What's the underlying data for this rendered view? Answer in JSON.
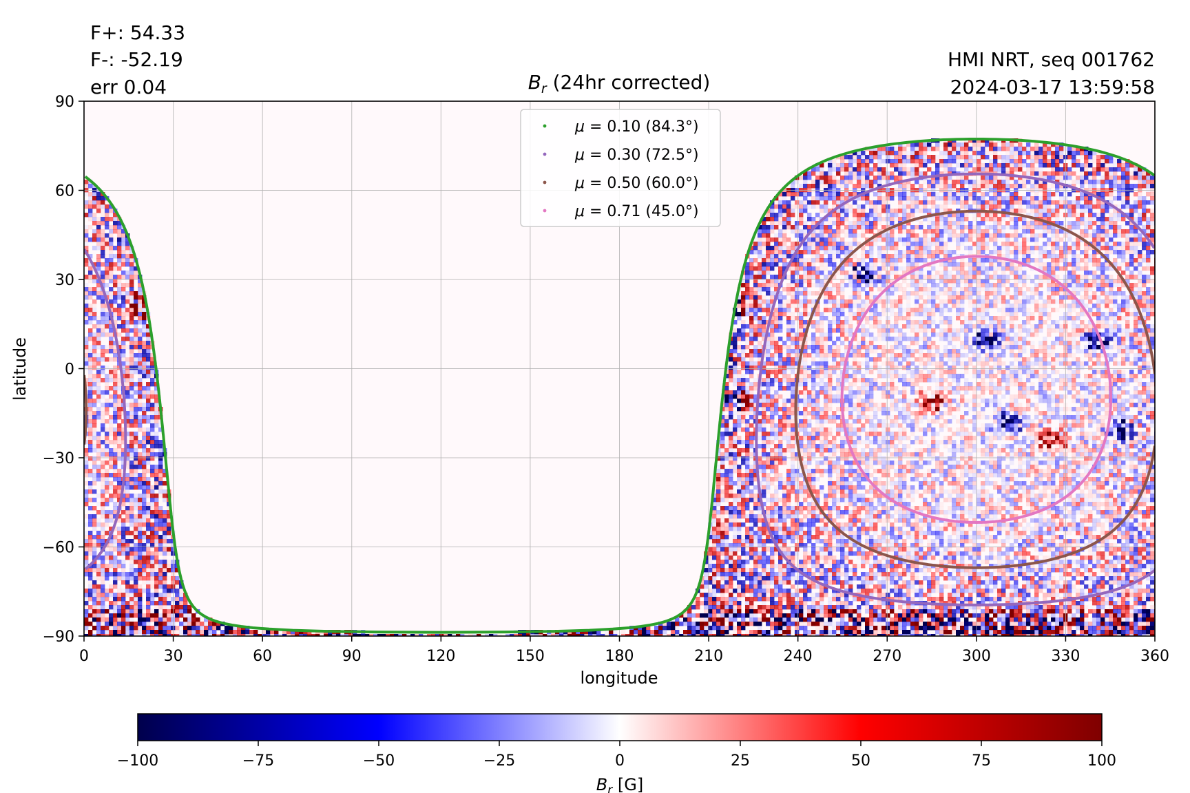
{
  "header": {
    "flux_pos": "F+: 54.33",
    "flux_neg": "F-: -52.19",
    "err": "err 0.04",
    "source": "HMI NRT, seq 001762",
    "timestamp": "2024-03-17 13:59:58"
  },
  "chart_data": [
    {
      "type": "heatmap",
      "title_symbol": "B",
      "title_sub": "r",
      "title_rest": " (24hr corrected)",
      "xlabel": "longitude",
      "ylabel": "latitude",
      "xlim": [
        0,
        360
      ],
      "ylim": [
        -90,
        90
      ],
      "xticks": [
        0,
        30,
        60,
        90,
        120,
        150,
        180,
        210,
        240,
        270,
        300,
        330,
        360
      ],
      "yticks": [
        -90,
        -60,
        -30,
        0,
        30,
        60,
        90
      ],
      "xtick_labels": [
        "0",
        "30",
        "60",
        "90",
        "120",
        "150",
        "180",
        "210",
        "240",
        "270",
        "300",
        "330",
        "360"
      ],
      "ytick_labels": [
        "−90",
        "−60",
        "−30",
        "0",
        "30",
        "60",
        "90"
      ],
      "grid": true,
      "legend_position": "top-center",
      "disk_center": {
        "lon": 300,
        "lat": -7
      },
      "series": [
        {
          "name": "μ = 0.10 (84.3°)",
          "mu_label": "μ",
          "value_label": " = 0.10 (84.3°)",
          "mu": 0.1,
          "angle_deg": 84.3,
          "color": "#2ca02c"
        },
        {
          "name": "μ = 0.30 (72.5°)",
          "mu_label": "μ",
          "value_label": " = 0.30 (72.5°)",
          "mu": 0.3,
          "angle_deg": 72.5,
          "color": "#9467bd"
        },
        {
          "name": "μ = 0.50 (60.0°)",
          "mu_label": "μ",
          "value_label": " = 0.50 (60.0°)",
          "mu": 0.5,
          "angle_deg": 60.0,
          "color": "#8c564b"
        },
        {
          "name": "μ = 0.71 (45.0°)",
          "mu_label": "μ",
          "value_label": " = 0.71 (45.0°)",
          "mu": 0.71,
          "angle_deg": 45.0,
          "color": "#e377c2"
        }
      ],
      "active_regions": [
        {
          "lon": 220,
          "lat": 20,
          "polarity": "mixed"
        },
        {
          "lon": 220,
          "lat": -10,
          "polarity": "mixed"
        },
        {
          "lon": 18,
          "lat": 22,
          "polarity": "positive"
        },
        {
          "lon": 325,
          "lat": -23,
          "polarity": "positive"
        },
        {
          "lon": 310,
          "lat": -18,
          "polarity": "negative"
        },
        {
          "lon": 303,
          "lat": 10,
          "polarity": "negative"
        },
        {
          "lon": 340,
          "lat": 10,
          "polarity": "negative"
        },
        {
          "lon": 284,
          "lat": -10,
          "polarity": "positive"
        },
        {
          "lon": 262,
          "lat": 32,
          "polarity": "negative"
        },
        {
          "lon": 348,
          "lat": -20,
          "polarity": "negative"
        }
      ]
    },
    {
      "type": "colorbar",
      "label_symbol": "B",
      "label_sub": "r",
      "label_rest": " [G]",
      "range": [
        -100,
        100
      ],
      "ticks": [
        -100,
        -75,
        -50,
        -25,
        0,
        25,
        50,
        75,
        100
      ],
      "tick_labels": [
        "−100",
        "−75",
        "−50",
        "−25",
        "0",
        "25",
        "50",
        "75",
        "100"
      ],
      "colormap": "seismic",
      "color_stops": [
        "#00004c",
        "#0000ff",
        "#ffffff",
        "#ff0000",
        "#7f0000"
      ]
    }
  ]
}
